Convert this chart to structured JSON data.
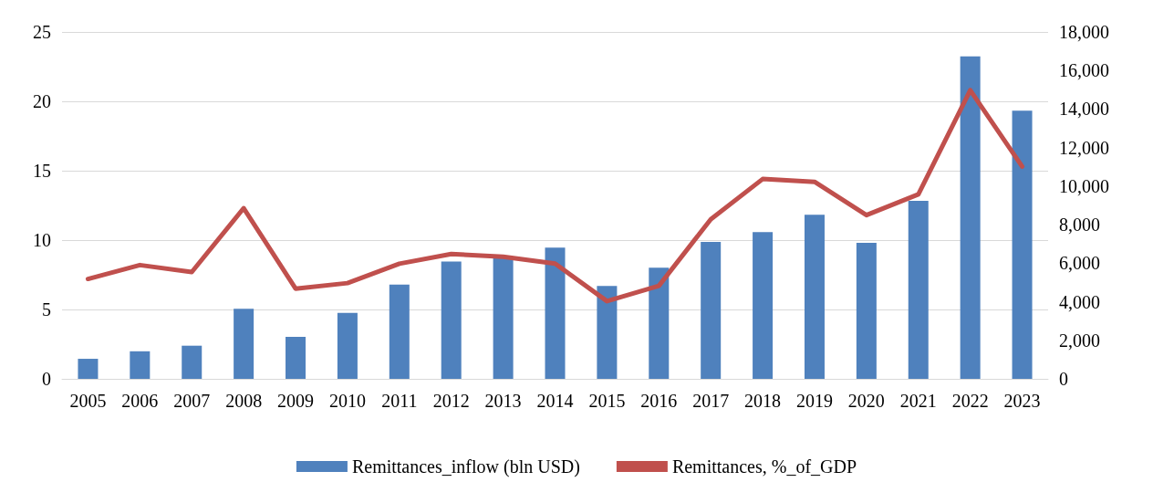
{
  "chart_data": {
    "type": "bar",
    "categories": [
      "2005",
      "2006",
      "2007",
      "2008",
      "2009",
      "2010",
      "2011",
      "2012",
      "2013",
      "2014",
      "2015",
      "2016",
      "2017",
      "2018",
      "2019",
      "2020",
      "2021",
      "2022",
      "2023"
    ],
    "series": [
      {
        "name": "Remittances_inflow (bln USD)",
        "axis": "y2",
        "color": "#4f81bd",
        "values": [
          1040,
          1430,
          1720,
          3630,
          2180,
          3420,
          4890,
          6090,
          6300,
          6810,
          4820,
          5770,
          7100,
          7610,
          8520,
          7060,
          9240,
          16730,
          13920
        ]
      },
      {
        "name": "Remittances, %_of_GDP",
        "type": "line",
        "axis": "y",
        "color": "#c0504d",
        "values": [
          7.2,
          8.2,
          7.7,
          12.3,
          6.5,
          6.9,
          8.3,
          9.0,
          8.8,
          8.3,
          5.6,
          6.7,
          11.5,
          14.4,
          14.2,
          11.8,
          13.3,
          20.8,
          15.3
        ]
      }
    ],
    "ylim": [
      0,
      25
    ],
    "yticks": [
      0,
      5,
      10,
      15,
      20,
      25
    ],
    "y2lim": [
      0,
      18000
    ],
    "y2ticks": [
      {
        "value": 0,
        "label": "0"
      },
      {
        "value": 2000,
        "label": "2,000"
      },
      {
        "value": 4000,
        "label": "4,000"
      },
      {
        "value": 6000,
        "label": "6,000"
      },
      {
        "value": 8000,
        "label": "8,000"
      },
      {
        "value": 10000,
        "label": "10,000"
      },
      {
        "value": 12000,
        "label": "12,000"
      },
      {
        "value": 14000,
        "label": "14,000"
      },
      {
        "value": 16000,
        "label": "16,000"
      },
      {
        "value": 18000,
        "label": "18,000"
      }
    ],
    "grid": "y",
    "legend": "bottom",
    "marker": "none",
    "line_style": "solid"
  }
}
